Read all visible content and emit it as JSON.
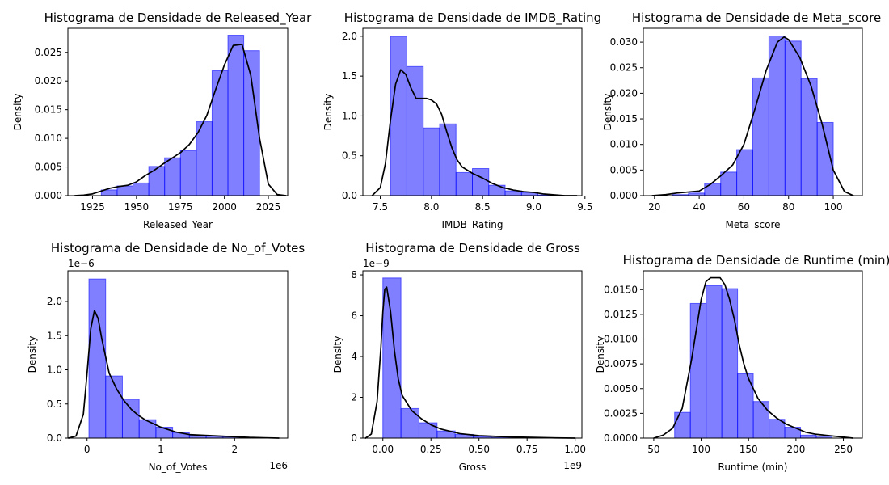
{
  "chart_data": [
    {
      "type": "histogram",
      "title": "Histograma de Densidade de Released_Year",
      "xlabel": "Released_Year",
      "ylabel": "Density",
      "xlim": [
        1911,
        2036
      ],
      "ylim": [
        0,
        0.0292
      ],
      "xticks": [
        1925,
        1950,
        1975,
        2000,
        2025
      ],
      "xtick_labels": [
        "1925",
        "1950",
        "1975",
        "2000",
        "2025"
      ],
      "yticks": [
        0,
        0.005,
        0.01,
        0.015,
        0.02,
        0.025
      ],
      "ytick_labels": [
        "0.000",
        "0.005",
        "0.010",
        "0.015",
        "0.020",
        "0.025"
      ],
      "x_offset": "",
      "y_offset": "",
      "bins": [
        {
          "x0": 1930,
          "x1": 1939,
          "value": 0.001
        },
        {
          "x0": 1939,
          "x1": 1948,
          "value": 0.0017
        },
        {
          "x0": 1948,
          "x1": 1957,
          "value": 0.0022
        },
        {
          "x0": 1957,
          "x1": 1966,
          "value": 0.0051
        },
        {
          "x0": 1966,
          "x1": 1975,
          "value": 0.0066
        },
        {
          "x0": 1975,
          "x1": 1984,
          "value": 0.0079
        },
        {
          "x0": 1984,
          "x1": 1993,
          "value": 0.0129
        },
        {
          "x0": 1993,
          "x1": 2002,
          "value": 0.0218
        },
        {
          "x0": 2002,
          "x1": 2011,
          "value": 0.028
        },
        {
          "x0": 2011,
          "x1": 2020,
          "value": 0.0253
        }
      ],
      "kde": {
        "x": [
          1915,
          1920,
          1925,
          1930,
          1935,
          1940,
          1945,
          1950,
          1955,
          1960,
          1965,
          1970,
          1975,
          1980,
          1985,
          1990,
          1995,
          2000,
          2005,
          2010,
          2015,
          2020,
          2025,
          2030,
          2035
        ],
        "y": [
          0.0,
          0.0001,
          0.0003,
          0.0008,
          0.0013,
          0.0016,
          0.0018,
          0.0024,
          0.0035,
          0.0044,
          0.0055,
          0.0065,
          0.0075,
          0.0089,
          0.011,
          0.014,
          0.0185,
          0.0228,
          0.0262,
          0.0264,
          0.021,
          0.01,
          0.002,
          0.0002,
          0.0
        ]
      }
    },
    {
      "type": "histogram",
      "title": "Histograma de Densidade de IMDB_Rating",
      "xlabel": "IMDB_Rating",
      "ylabel": "Density",
      "xlim": [
        7.33,
        9.47
      ],
      "ylim": [
        0,
        2.1
      ],
      "xticks": [
        7.5,
        8.0,
        8.5,
        9.0,
        9.5
      ],
      "xtick_labels": [
        "7.5",
        "8.0",
        "8.5",
        "9.0",
        "9.5"
      ],
      "yticks": [
        0,
        0.5,
        1.0,
        1.5,
        2.0
      ],
      "ytick_labels": [
        "0.0",
        "0.5",
        "1.0",
        "1.5",
        "2.0"
      ],
      "x_offset": "",
      "y_offset": "",
      "bins": [
        {
          "x0": 7.6,
          "x1": 7.76,
          "value": 2.0
        },
        {
          "x0": 7.76,
          "x1": 7.92,
          "value": 1.62
        },
        {
          "x0": 7.92,
          "x1": 8.08,
          "value": 0.85
        },
        {
          "x0": 8.08,
          "x1": 8.24,
          "value": 0.9
        },
        {
          "x0": 8.24,
          "x1": 8.4,
          "value": 0.29
        },
        {
          "x0": 8.4,
          "x1": 8.56,
          "value": 0.34
        },
        {
          "x0": 8.56,
          "x1": 8.72,
          "value": 0.13
        },
        {
          "x0": 8.72,
          "x1": 8.88,
          "value": 0.06
        },
        {
          "x0": 8.88,
          "x1": 9.04,
          "value": 0.04
        },
        {
          "x0": 9.04,
          "x1": 9.2,
          "value": 0.01
        }
      ],
      "kde": {
        "x": [
          7.42,
          7.5,
          7.55,
          7.6,
          7.65,
          7.7,
          7.75,
          7.8,
          7.85,
          7.9,
          7.95,
          8.0,
          8.05,
          8.1,
          8.15,
          8.2,
          8.25,
          8.3,
          8.4,
          8.5,
          8.6,
          8.7,
          8.8,
          8.9,
          9.0,
          9.1,
          9.2,
          9.3,
          9.42
        ],
        "y": [
          0.0,
          0.1,
          0.4,
          0.95,
          1.4,
          1.58,
          1.52,
          1.35,
          1.22,
          1.22,
          1.22,
          1.2,
          1.15,
          1.02,
          0.8,
          0.6,
          0.45,
          0.36,
          0.28,
          0.22,
          0.15,
          0.1,
          0.07,
          0.05,
          0.04,
          0.02,
          0.01,
          0.0,
          0.0
        ]
      }
    },
    {
      "type": "histogram",
      "title": "Histograma de Densidade de Meta_score",
      "xlabel": "Meta_score",
      "ylabel": "Density",
      "xlim": [
        15,
        113
      ],
      "ylim": [
        0,
        0.0327
      ],
      "xticks": [
        20,
        40,
        60,
        80,
        100
      ],
      "xtick_labels": [
        "20",
        "40",
        "60",
        "80",
        "100"
      ],
      "yticks": [
        0,
        0.005,
        0.01,
        0.015,
        0.02,
        0.025,
        0.03
      ],
      "ytick_labels": [
        "0.000",
        "0.005",
        "0.010",
        "0.015",
        "0.020",
        "0.025",
        "0.030"
      ],
      "x_offset": "",
      "y_offset": "",
      "bins": [
        {
          "x0": 28,
          "x1": 35.2,
          "value": 0.0002
        },
        {
          "x0": 35.2,
          "x1": 42.4,
          "value": 0.0005
        },
        {
          "x0": 42.4,
          "x1": 49.6,
          "value": 0.0024
        },
        {
          "x0": 49.6,
          "x1": 56.8,
          "value": 0.0046
        },
        {
          "x0": 56.8,
          "x1": 64.0,
          "value": 0.009
        },
        {
          "x0": 64.0,
          "x1": 71.2,
          "value": 0.023
        },
        {
          "x0": 71.2,
          "x1": 78.4,
          "value": 0.0312
        },
        {
          "x0": 78.4,
          "x1": 85.6,
          "value": 0.0302
        },
        {
          "x0": 85.6,
          "x1": 92.8,
          "value": 0.0229
        },
        {
          "x0": 92.8,
          "x1": 100.0,
          "value": 0.0143
        }
      ],
      "kde": {
        "x": [
          19,
          25,
          30,
          35,
          40,
          45,
          50,
          55,
          60,
          65,
          70,
          75,
          78,
          80,
          85,
          90,
          95,
          100,
          105,
          109
        ],
        "y": [
          0.0,
          0.0002,
          0.0005,
          0.0007,
          0.0009,
          0.0022,
          0.004,
          0.006,
          0.01,
          0.017,
          0.0245,
          0.03,
          0.031,
          0.0305,
          0.027,
          0.0215,
          0.014,
          0.005,
          0.0008,
          0.0
        ]
      }
    },
    {
      "type": "histogram",
      "title": "Histograma de Densidade de No_of_Votes",
      "xlabel": "No_of_Votes",
      "ylabel": "Density",
      "xlim": [
        -260000,
        2720000
      ],
      "ylim": [
        0,
        2.45
      ],
      "xticks": [
        0,
        1000000,
        2000000
      ],
      "xtick_labels": [
        "0",
        "1",
        "2"
      ],
      "yticks": [
        0,
        0.5,
        1.0,
        1.5,
        2.0
      ],
      "ytick_labels": [
        "0.0",
        "0.5",
        "1.0",
        "1.5",
        "2.0"
      ],
      "x_offset": "1e6",
      "y_offset": "1e−6",
      "bins": [
        {
          "x0": 25000,
          "x1": 252000,
          "value": 2.33
        },
        {
          "x0": 252000,
          "x1": 479000,
          "value": 0.91
        },
        {
          "x0": 479000,
          "x1": 706000,
          "value": 0.57
        },
        {
          "x0": 706000,
          "x1": 933000,
          "value": 0.27
        },
        {
          "x0": 933000,
          "x1": 1160000,
          "value": 0.16
        },
        {
          "x0": 1160000,
          "x1": 1387000,
          "value": 0.08
        },
        {
          "x0": 1387000,
          "x1": 1614000,
          "value": 0.04
        },
        {
          "x0": 1614000,
          "x1": 1841000,
          "value": 0.03
        },
        {
          "x0": 1841000,
          "x1": 2068000,
          "value": 0.02
        },
        {
          "x0": 2068000,
          "x1": 2295000,
          "value": 0.01
        }
      ],
      "kde": {
        "x": [
          -250000,
          -150000,
          -50000,
          0,
          50000,
          100000,
          150000,
          200000,
          300000,
          400000,
          500000,
          600000,
          700000,
          800000,
          1000000,
          1200000,
          1400000,
          1600000,
          1800000,
          2000000,
          2200000,
          2400000,
          2600000
        ],
        "y": [
          0.0,
          0.03,
          0.35,
          0.95,
          1.6,
          1.87,
          1.75,
          1.45,
          0.95,
          0.72,
          0.55,
          0.42,
          0.33,
          0.26,
          0.16,
          0.09,
          0.05,
          0.04,
          0.03,
          0.02,
          0.01,
          0.005,
          0.0
        ]
      }
    },
    {
      "type": "histogram",
      "title": "Histograma de Densidade de Gross",
      "xlabel": "Gross",
      "ylabel": "Density",
      "xlim": [
        -104000000,
        1035000000
      ],
      "ylim": [
        0,
        8.2
      ],
      "xticks": [
        0,
        250000000,
        500000000,
        750000000,
        1000000000
      ],
      "xtick_labels": [
        "0.00",
        "0.25",
        "0.50",
        "0.75",
        "1.00"
      ],
      "yticks": [
        0,
        2,
        4,
        6,
        8
      ],
      "ytick_labels": [
        "0",
        "2",
        "4",
        "6",
        "8"
      ],
      "x_offset": "1e9",
      "y_offset": "1e−9",
      "bins": [
        {
          "x0": 0,
          "x1": 94000000,
          "value": 7.85
        },
        {
          "x0": 94000000,
          "x1": 188000000,
          "value": 1.45
        },
        {
          "x0": 188000000,
          "x1": 282000000,
          "value": 0.75
        },
        {
          "x0": 282000000,
          "x1": 376000000,
          "value": 0.35
        },
        {
          "x0": 376000000,
          "x1": 470000000,
          "value": 0.18
        },
        {
          "x0": 470000000,
          "x1": 564000000,
          "value": 0.07
        },
        {
          "x0": 564000000,
          "x1": 658000000,
          "value": 0.03
        },
        {
          "x0": 658000000,
          "x1": 752000000,
          "value": 0.03
        },
        {
          "x0": 752000000,
          "x1": 846000000,
          "value": 0.01
        },
        {
          "x0": 846000000,
          "x1": 940000000,
          "value": 0.01
        }
      ],
      "kde": {
        "x": [
          -90000000,
          -60000000,
          -30000000,
          -10000000,
          0,
          10000000,
          20000000,
          40000000,
          60000000,
          80000000,
          100000000,
          150000000,
          200000000,
          250000000,
          300000000,
          400000000,
          500000000,
          600000000,
          700000000,
          800000000,
          900000000,
          1000000000
        ],
        "y": [
          0.0,
          0.2,
          1.8,
          4.5,
          6.2,
          7.3,
          7.4,
          6.2,
          4.3,
          2.9,
          2.1,
          1.35,
          0.95,
          0.65,
          0.45,
          0.22,
          0.12,
          0.08,
          0.05,
          0.03,
          0.01,
          0.0
        ]
      }
    },
    {
      "type": "histogram",
      "title": "Histograma de Densidade de Runtime (min)",
      "xlabel": "Runtime (min)",
      "ylabel": "Density",
      "xlim": [
        39,
        270
      ],
      "ylim": [
        0,
        0.0169
      ],
      "xticks": [
        50,
        100,
        150,
        200,
        250
      ],
      "xtick_labels": [
        "50",
        "100",
        "150",
        "200",
        "250"
      ],
      "yticks": [
        0,
        0.0025,
        0.005,
        0.0075,
        0.01,
        0.0125,
        0.015
      ],
      "ytick_labels": [
        "0.0000",
        "0.0025",
        "0.0050",
        "0.0075",
        "0.0100",
        "0.0125",
        "0.0150"
      ],
      "x_offset": "",
      "y_offset": "",
      "bins": [
        {
          "x0": 72,
          "x1": 88.6,
          "value": 0.0026
        },
        {
          "x0": 88.6,
          "x1": 105.2,
          "value": 0.0136
        },
        {
          "x0": 105.2,
          "x1": 121.8,
          "value": 0.0154
        },
        {
          "x0": 121.8,
          "x1": 138.4,
          "value": 0.0151
        },
        {
          "x0": 138.4,
          "x1": 155.0,
          "value": 0.0065
        },
        {
          "x0": 155.0,
          "x1": 171.6,
          "value": 0.0037
        },
        {
          "x0": 171.6,
          "x1": 188.2,
          "value": 0.0019
        },
        {
          "x0": 188.2,
          "x1": 204.8,
          "value": 0.0011
        },
        {
          "x0": 204.8,
          "x1": 221.4,
          "value": 0.0003
        },
        {
          "x0": 221.4,
          "x1": 238.0,
          "value": 0.0002
        }
      ],
      "kde": {
        "x": [
          50,
          60,
          70,
          80,
          90,
          100,
          105,
          110,
          115,
          120,
          125,
          130,
          135,
          140,
          145,
          150,
          160,
          170,
          180,
          190,
          200,
          210,
          220,
          230,
          240,
          250,
          260
        ],
        "y": [
          0.0,
          0.0003,
          0.001,
          0.003,
          0.008,
          0.014,
          0.0158,
          0.0162,
          0.0162,
          0.0162,
          0.0155,
          0.014,
          0.012,
          0.0095,
          0.0075,
          0.006,
          0.004,
          0.0028,
          0.002,
          0.0014,
          0.001,
          0.0006,
          0.0004,
          0.0003,
          0.0002,
          0.0001,
          0.0
        ]
      }
    }
  ]
}
